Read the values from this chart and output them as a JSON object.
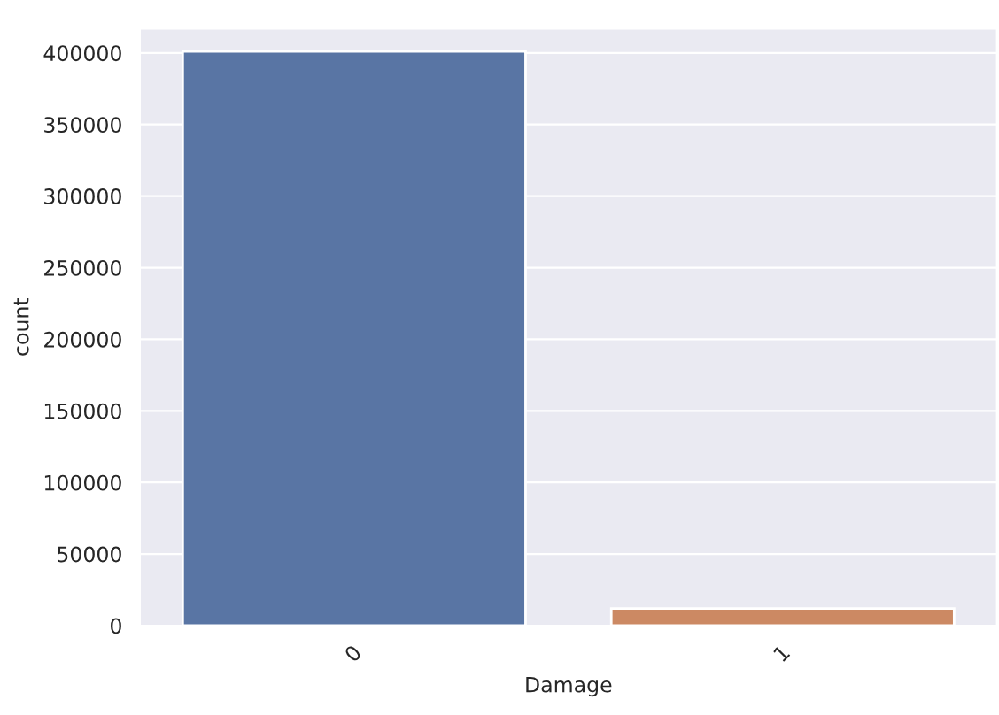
{
  "chart_data": {
    "type": "bar",
    "xlabel": "Damage",
    "ylabel": "count",
    "categories": [
      "0",
      "1"
    ],
    "values": [
      401000,
      12000
    ],
    "colors": [
      "#5975a4",
      "#cc8963"
    ],
    "ylim": [
      0,
      417000
    ],
    "yticks": [
      0,
      50000,
      100000,
      150000,
      200000,
      250000,
      300000,
      350000,
      400000
    ],
    "grid": "y"
  }
}
